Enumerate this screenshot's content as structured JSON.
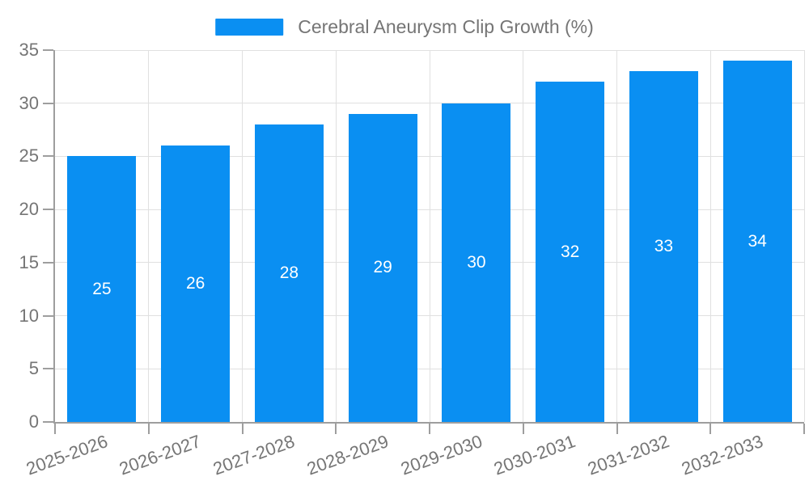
{
  "legend": {
    "label": "Cerebral Aneurysm Clip Growth (%)",
    "swatch_color": "#0a8ff2"
  },
  "chart_data": {
    "type": "bar",
    "title": "Cerebral Aneurysm Clip Growth (%)",
    "categories": [
      "2025-2026",
      "2026-2027",
      "2027-2028",
      "2028-2029",
      "2029-2030",
      "2030-2031",
      "2031-2032",
      "2032-2033"
    ],
    "series": [
      {
        "name": "Cerebral Aneurysm Clip Growth (%)",
        "values": [
          25,
          26,
          28,
          29,
          30,
          32,
          33,
          34
        ]
      }
    ],
    "value_labels": [
      "25",
      "26",
      "28",
      "29",
      "30",
      "32",
      "33",
      "34"
    ],
    "xlabel": "",
    "ylabel": "",
    "ylim": [
      0,
      35
    ],
    "yticks": [
      0,
      5,
      10,
      15,
      20,
      25,
      30,
      35
    ],
    "grid": true,
    "legend_position": "top-center",
    "bar_color": "#0a8ff2",
    "value_label_color": "#ffffff",
    "axis_color": "#9e9e9e",
    "grid_color": "#e0e0e0",
    "tick_label_color": "#757575",
    "x_label_rotation_deg": -20
  }
}
